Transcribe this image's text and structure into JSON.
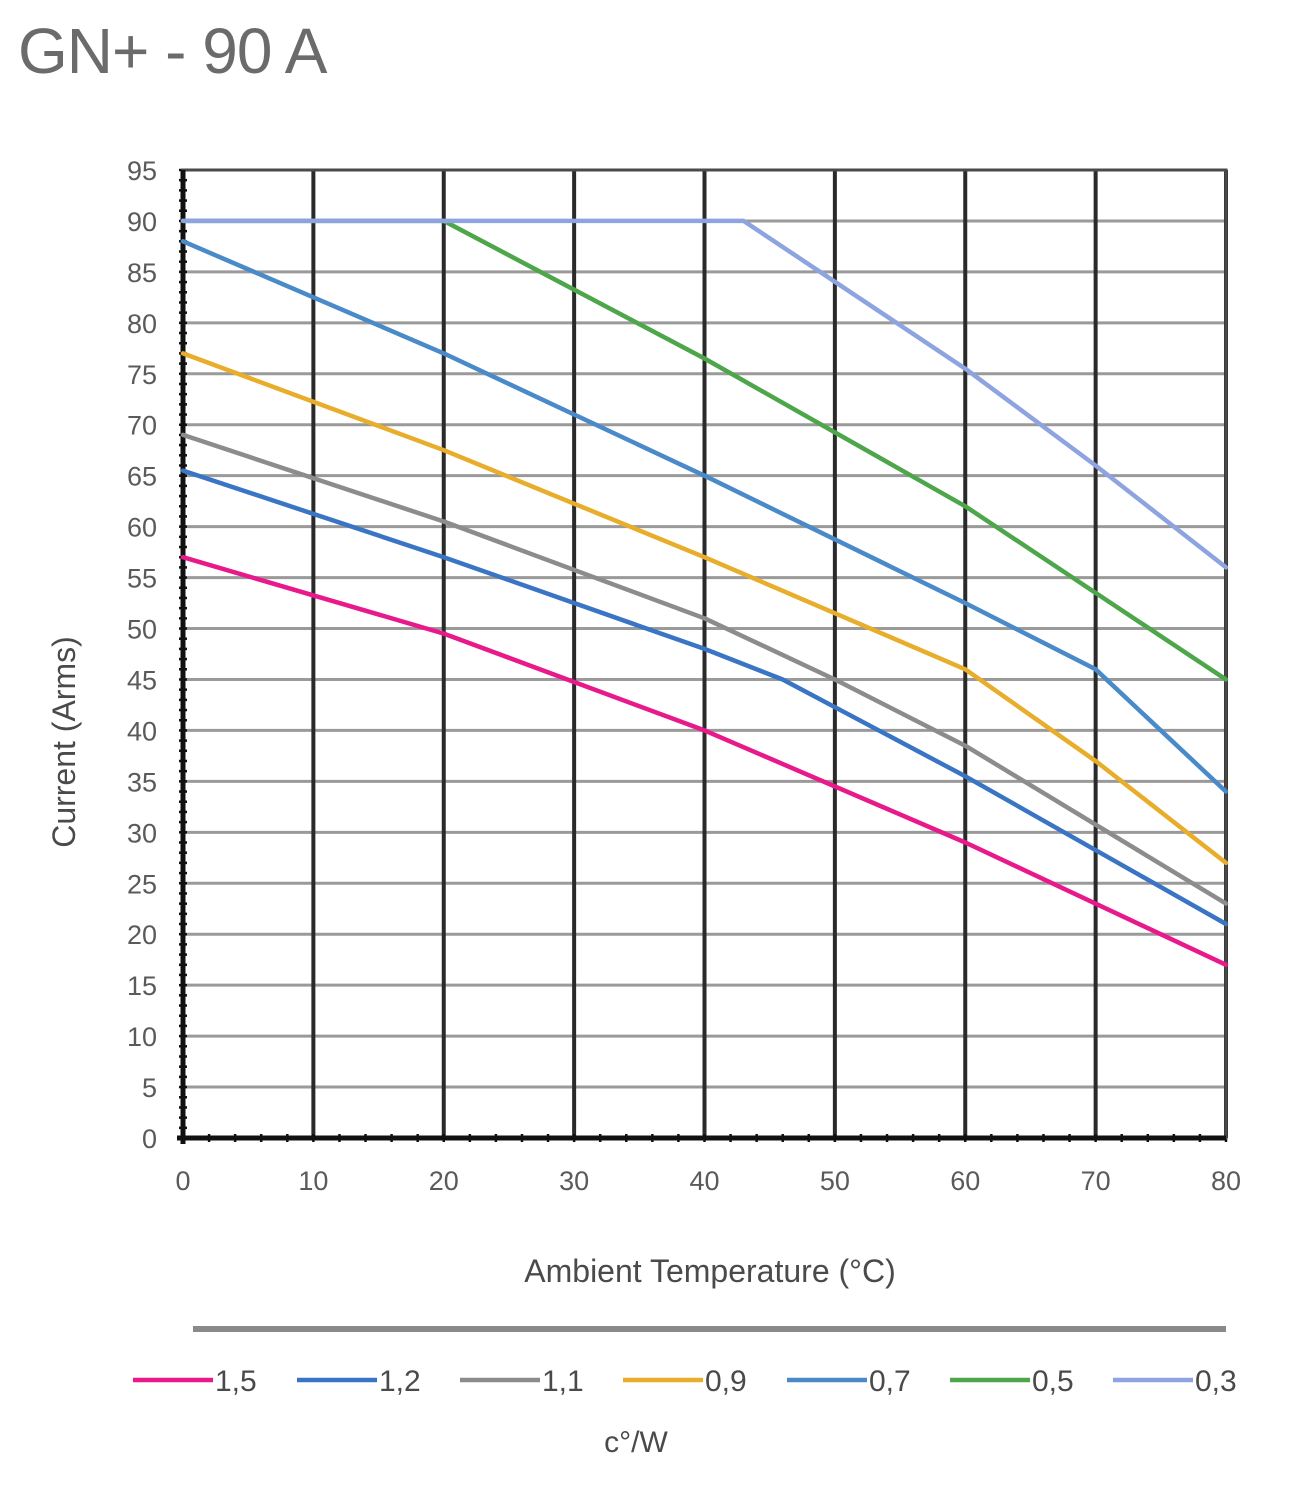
{
  "title": "GN+ - 90 A",
  "chart_data": {
    "type": "line",
    "title": "GN+ - 90 A",
    "xlabel": "Ambient Temperature (°C)",
    "ylabel": "Current (Arms)",
    "xlim": [
      0,
      80
    ],
    "ylim": [
      0,
      95
    ],
    "xticks": [
      "0",
      "10",
      "20",
      "30",
      "40",
      "50",
      "60",
      "70",
      "80"
    ],
    "yticks": [
      "0",
      "5",
      "10",
      "15",
      "20",
      "25",
      "30",
      "35",
      "40",
      "45",
      "50",
      "55",
      "60",
      "65",
      "70",
      "75",
      "80",
      "85",
      "90",
      "95"
    ],
    "grid": true,
    "legend_title": "c°/W",
    "legend_position": "bottom",
    "series": [
      {
        "name": "1,5",
        "color": "#e8198b",
        "points": [
          [
            0,
            57
          ],
          [
            20,
            49.5
          ],
          [
            40,
            40
          ],
          [
            60,
            29
          ],
          [
            80,
            17
          ]
        ]
      },
      {
        "name": "1,2",
        "color": "#3a74c4",
        "points": [
          [
            0,
            65.5
          ],
          [
            20,
            57
          ],
          [
            40,
            48
          ],
          [
            46,
            45
          ],
          [
            60,
            35.5
          ],
          [
            80,
            21
          ]
        ]
      },
      {
        "name": "1,1",
        "color": "#8c8c8c",
        "points": [
          [
            0,
            69
          ],
          [
            20,
            60.5
          ],
          [
            40,
            51
          ],
          [
            50,
            45
          ],
          [
            60,
            38.5
          ],
          [
            80,
            23
          ]
        ]
      },
      {
        "name": "0,9",
        "color": "#e8ad2a",
        "points": [
          [
            0,
            77
          ],
          [
            20,
            67.5
          ],
          [
            40,
            57
          ],
          [
            60,
            46
          ],
          [
            70,
            37
          ],
          [
            80,
            27
          ]
        ]
      },
      {
        "name": "0,7",
        "color": "#4a8ac8",
        "points": [
          [
            0,
            88
          ],
          [
            20,
            77
          ],
          [
            40,
            65
          ],
          [
            60,
            52.5
          ],
          [
            70,
            46
          ],
          [
            80,
            34
          ]
        ]
      },
      {
        "name": "0,5",
        "color": "#4ea64a",
        "points": [
          [
            0,
            90
          ],
          [
            20,
            90
          ],
          [
            40,
            76.5
          ],
          [
            60,
            62
          ],
          [
            80,
            45
          ]
        ]
      },
      {
        "name": "0,3",
        "color": "#8ea4e0",
        "points": [
          [
            0,
            90
          ],
          [
            43,
            90
          ],
          [
            60,
            75.5
          ],
          [
            70,
            66
          ],
          [
            80,
            56
          ]
        ]
      }
    ]
  }
}
